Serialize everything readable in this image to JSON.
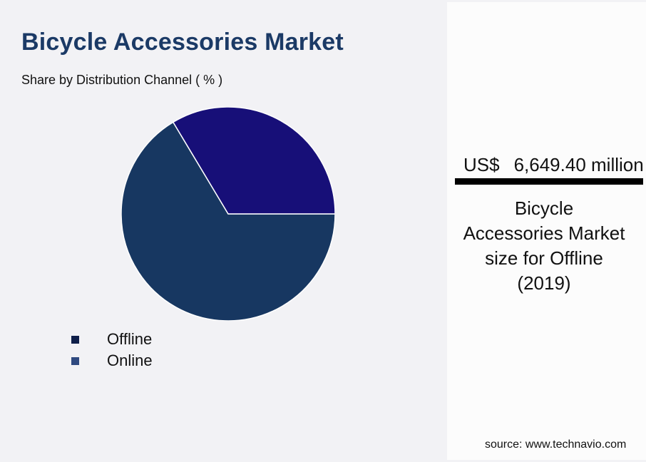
{
  "header": {
    "title": "Bicycle Accessories Market",
    "subtitle": "Share by Distribution Channel ( % )"
  },
  "colors": {
    "title": "#1b3a66",
    "background": "#f2f2f5",
    "panel_background": "#fcfcfc",
    "slice_offline": "#173761",
    "slice_online": "#170f78",
    "legend_offline": "#0f1f4a",
    "legend_online": "#2f4a80"
  },
  "legend": {
    "items": [
      {
        "label": "Offline",
        "color": "#0f1f4a"
      },
      {
        "label": "Online",
        "color": "#2f4a80"
      }
    ]
  },
  "panel": {
    "currency": "US$",
    "amount": "6,649.40 million",
    "description": "Bicycle Accessories Market size for Offline (2019)",
    "desc_lines": [
      "Bicycle",
      "Accessories Market",
      "size for Offline",
      "(2019)"
    ],
    "source": "source: www.technavio.com"
  },
  "chart_data": {
    "type": "pie",
    "title": "Bicycle Accessories Market",
    "subtitle": "Share by Distribution Channel ( % )",
    "categories": [
      "Offline",
      "Online"
    ],
    "values": [
      66.4,
      33.6
    ],
    "colors": [
      "#173761",
      "#170f78"
    ],
    "legend_position": "bottom-left",
    "annotation": "US$ 6,649.40 million — Bicycle Accessories Market size for Offline (2019)"
  }
}
